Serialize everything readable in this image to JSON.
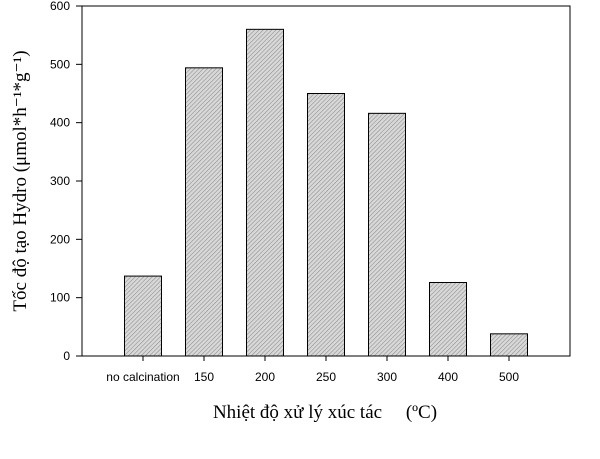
{
  "chart_data": {
    "type": "bar",
    "categories": [
      "no calcination",
      "150",
      "200",
      "250",
      "300",
      "400",
      "500"
    ],
    "values": [
      137,
      494,
      560,
      450,
      416,
      126,
      38
    ],
    "ylim": [
      0,
      600
    ],
    "yticks": [
      0,
      100,
      200,
      300,
      400,
      500,
      600
    ],
    "ylabel": "Tốc độ tạo Hydro (μmol*h⁻¹*g⁻¹)",
    "xlabel": "Nhiệt độ xử lý xúc tác     (ºC)",
    "bar_color": "#c8c8c8",
    "bar_pattern": "diagonal-hatch",
    "grid": false,
    "legend": "none"
  }
}
